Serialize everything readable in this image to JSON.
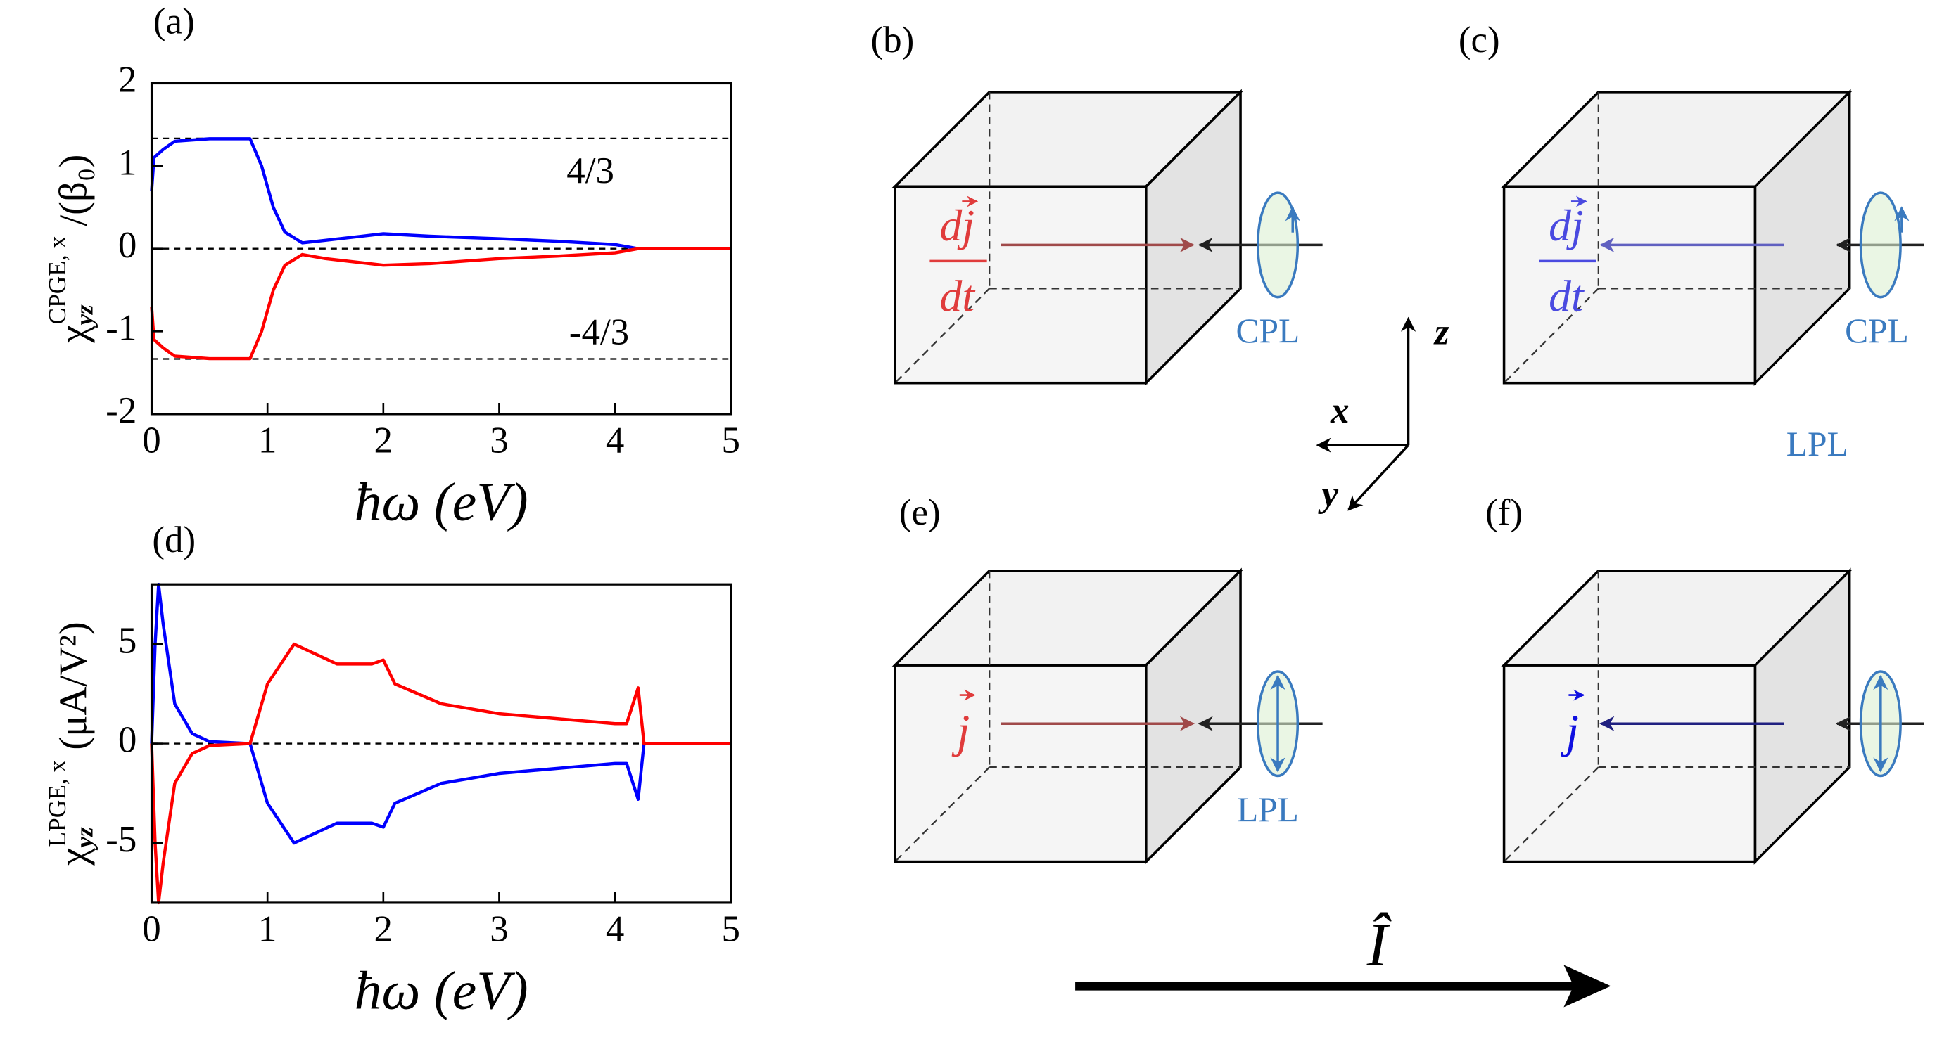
{
  "chart_data": [
    {
      "type": "line",
      "panel": "(a)",
      "ylabel": {
        "main": "χ",
        "sub": "yz",
        "sup": "CPGE, x",
        "unit": " /(β₀)"
      },
      "xlabel": "ħω (eV)",
      "x": [
        0,
        0.02,
        0.1,
        0.2,
        0.5,
        0.85,
        0.95,
        1.05,
        1.15,
        1.3,
        1.5,
        2.0,
        2.4,
        3.0,
        3.5,
        4.0,
        4.2,
        5
      ],
      "series": [
        {
          "color": "#0000ff",
          "values": [
            0.7,
            1.1,
            1.2,
            1.3,
            1.33,
            1.33,
            1.0,
            0.5,
            0.2,
            0.07,
            0.1,
            0.18,
            0.15,
            0.12,
            0.09,
            0.05,
            0,
            0
          ]
        },
        {
          "color": "#ff0000",
          "values": [
            -0.7,
            -1.1,
            -1.2,
            -1.3,
            -1.33,
            -1.33,
            -1.0,
            -0.5,
            -0.2,
            -0.07,
            -0.12,
            -0.2,
            -0.18,
            -0.12,
            -0.09,
            -0.05,
            0,
            0
          ]
        }
      ],
      "hlines": [
        1.3333,
        0,
        -1.3333
      ],
      "annotations": [
        "4/3",
        "-4/3"
      ],
      "xlim": [
        0,
        5
      ],
      "ylim": [
        -2,
        2
      ],
      "xticks": [
        0,
        1,
        2,
        3,
        4,
        5
      ],
      "yticks": [
        -2,
        -1,
        0,
        1,
        2
      ]
    },
    {
      "type": "line",
      "panel": "(d)",
      "ylabel": {
        "main": "χ",
        "sub": "yz",
        "sup": "LPGE, x",
        "unit": " (μA/V²)"
      },
      "xlabel": "ħω (eV)",
      "x": [
        0,
        0.03,
        0.06,
        0.1,
        0.2,
        0.35,
        0.5,
        0.85,
        1.0,
        1.23,
        1.6,
        1.9,
        2.0,
        2.1,
        2.5,
        2.8,
        3.0,
        4.0,
        4.1,
        4.2,
        4.25,
        5
      ],
      "series": [
        {
          "color": "#0000ff",
          "values": [
            0,
            5,
            8,
            6,
            2,
            0.5,
            0.1,
            0,
            -3,
            -5,
            -4,
            -4,
            -4.2,
            -3,
            -2,
            -1.7,
            -1.5,
            -1,
            -1,
            -2.8,
            0,
            0
          ]
        },
        {
          "color": "#ff0000",
          "values": [
            0,
            -5,
            -8,
            -6,
            -2,
            -0.5,
            -0.1,
            0,
            3,
            5,
            4,
            4,
            4.2,
            3,
            2,
            1.7,
            1.5,
            1,
            1,
            2.8,
            0,
            0
          ]
        }
      ],
      "hlines": [
        0
      ],
      "xlim": [
        0,
        5
      ],
      "ylim": [
        -8,
        8
      ],
      "xticks": [
        0,
        1,
        2,
        3,
        4,
        5
      ],
      "yticks": [
        -5,
        0,
        5
      ]
    }
  ],
  "diagrams": [
    {
      "label": "(b)",
      "current_num": "dj",
      "current_den": "dt",
      "light": "CPL"
    },
    {
      "label": "(c)",
      "current_num": "dj",
      "current_den": "dt",
      "light": "CPL"
    },
    {
      "label": "(e)",
      "current": "j",
      "light": "LPL"
    },
    {
      "label": "(f)",
      "current": "j"
    }
  ],
  "extra_label": "LPL",
  "axes": {
    "x": "x",
    "y": "y",
    "z": "z"
  },
  "current_operator": "Î"
}
